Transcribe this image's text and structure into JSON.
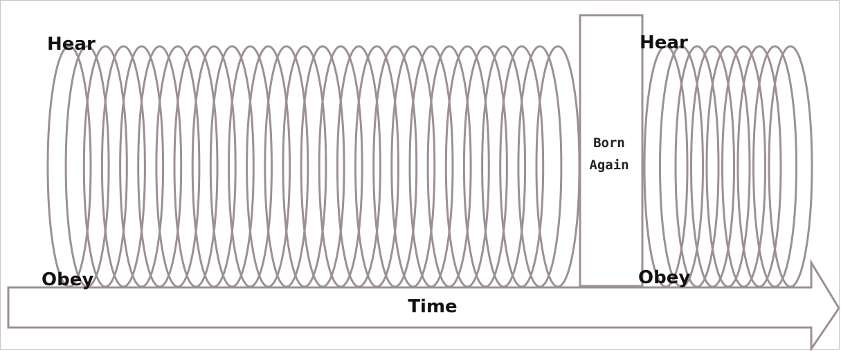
{
  "diagram": {
    "stroke_color": "#9c8f96",
    "fill_color": "#ffffff",
    "text_color": "#111111",
    "coil_before": {
      "top_label": "Hear",
      "bottom_label": "Obey",
      "loop_count": 28
    },
    "divider": {
      "label_line1": "Born",
      "label_line2": "Again"
    },
    "coil_after": {
      "top_label": "Hear",
      "bottom_label": "Obey",
      "loop_count": 9
    },
    "arrow": {
      "label": "Time"
    }
  }
}
